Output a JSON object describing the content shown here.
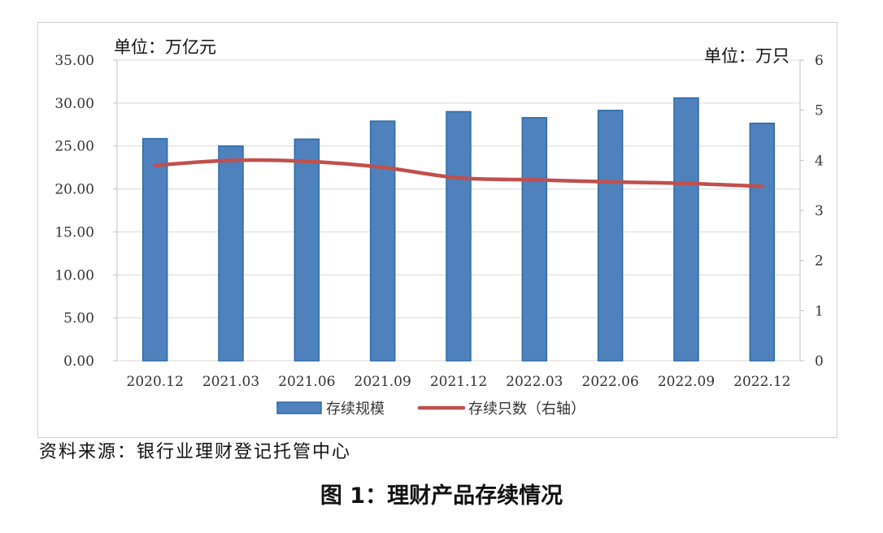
{
  "chart_data": {
    "type": "bar",
    "categories": [
      "2020.12",
      "2021.03",
      "2021.06",
      "2021.09",
      "2021.12",
      "2022.03",
      "2022.06",
      "2022.09",
      "2022.12"
    ],
    "series": [
      {
        "name": "存续规模",
        "type": "bar",
        "axis": "left",
        "values": [
          25.86,
          25.0,
          25.8,
          27.9,
          29.0,
          28.3,
          29.15,
          30.6,
          27.65
        ],
        "color": "#4f81bd"
      },
      {
        "name": "存续只数（右轴）",
        "type": "line",
        "axis": "right",
        "values": [
          3.9,
          4.0,
          3.98,
          3.86,
          3.65,
          3.61,
          3.57,
          3.54,
          3.48
        ],
        "color": "#c0504d"
      }
    ],
    "y_left": {
      "unit": "单位：万亿元",
      "ylim": [
        0,
        35
      ],
      "ticks": [
        "0.00",
        "5.00",
        "10.00",
        "15.00",
        "20.00",
        "25.00",
        "30.00",
        "35.00"
      ]
    },
    "y_right": {
      "unit": "单位：万只",
      "ylim": [
        0,
        6
      ],
      "ticks": [
        "0",
        "1",
        "2",
        "3",
        "4",
        "5",
        "6"
      ]
    },
    "legend_position": "bottom",
    "grid": true
  },
  "source": "资料来源：银行业理财登记托管中心",
  "caption": "图 1：理财产品存续情况"
}
